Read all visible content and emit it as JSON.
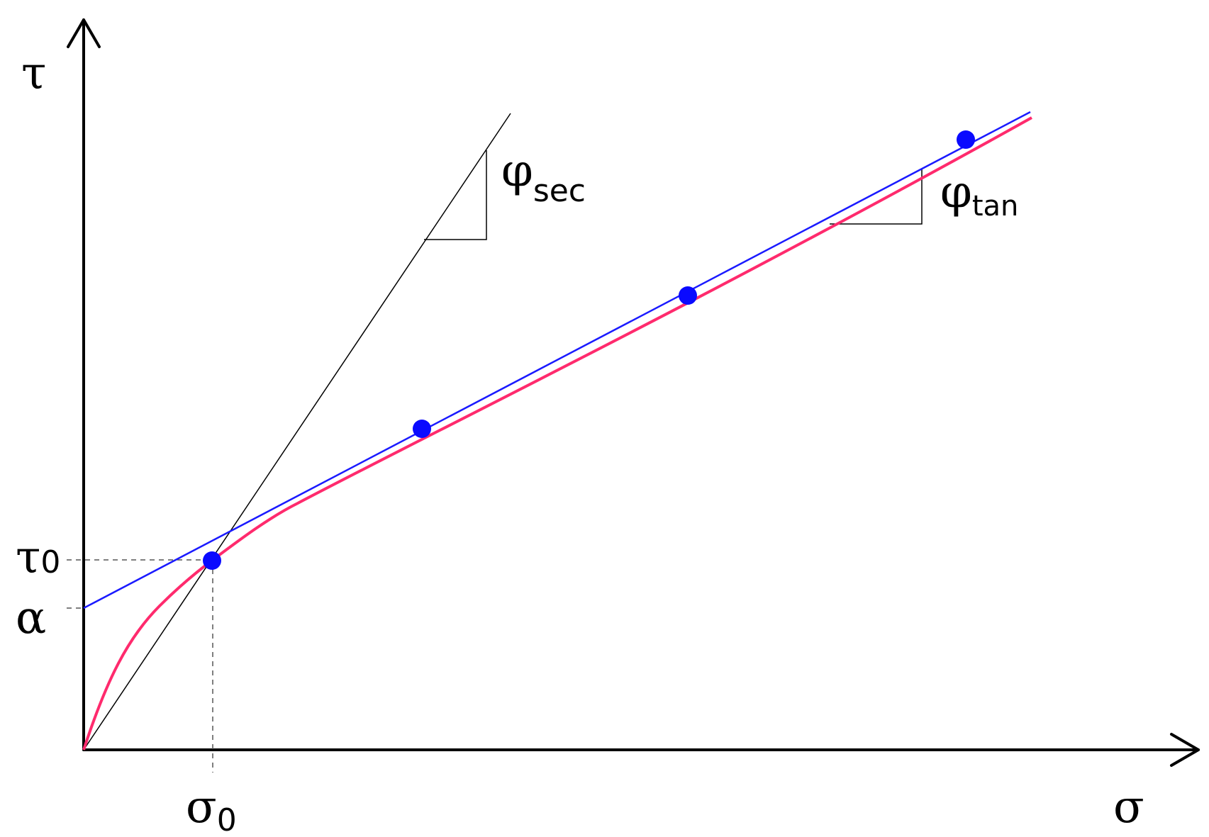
{
  "axes": {
    "y_label": "τ",
    "x_label": "σ"
  },
  "labels": {
    "tau0_main": "τ",
    "tau0_sub": "0",
    "alpha": "α",
    "sigma0_main": "σ",
    "sigma0_sub": "0",
    "phi_sec_main": "φ",
    "phi_sec_sub": "sec",
    "phi_tan_main": "φ",
    "phi_tan_sub": "tan"
  },
  "colors": {
    "envelope_curve": "#ff2a6d",
    "tangent_line": "#1a1aff",
    "data_points": "#0a0aff",
    "secant_line": "#000000",
    "axes": "#000000"
  }
}
